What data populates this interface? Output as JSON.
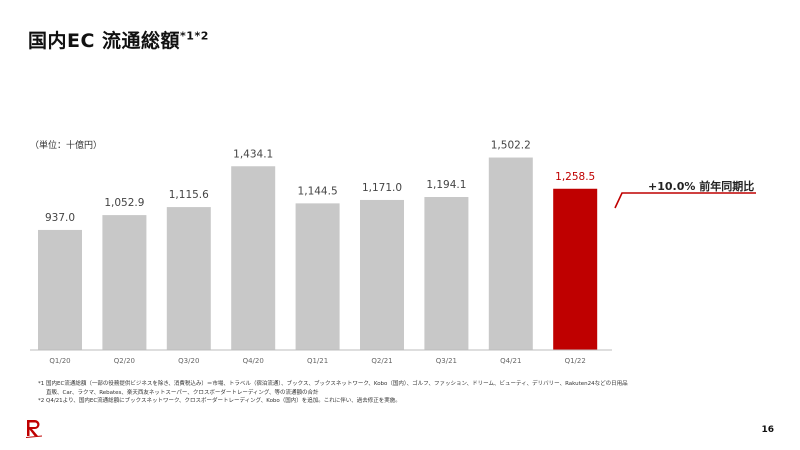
{
  "header": {
    "title": "国内EC 流通総額",
    "title_sup": "*1*2"
  },
  "unit_label": "（単位：十億円）",
  "growth_label": "+10.0% 前年同期比",
  "footnotes": [
    "*1 国内EC流通総額（一部の役務提供ビジネスを除き、消費税込み）＝市場、トラベル（宿泊流通）、ブックス、ブックスネットワーク、Kobo（国内）、ゴルフ、ファッション、ドリーム、ビューティ、デリバリー、Rakuten24などの日用品",
    "直販、Car、ラクマ、Rebates、楽天西友ネットスーパー、クロスボーダートレーディング、等の流通額の合計",
    "*2 Q4/21より、国内EC流通総額にブックスネットワーク、クロスボーダートレーディング、Kobo（国内）を追加。これに伴い、過去修正を実施。"
  ],
  "page_number": "16",
  "colors": {
    "bar": "#c8c8c8",
    "highlight": "#bf0000",
    "axis": "#bdbdbd",
    "label": "#444444",
    "highlight_label": "#bf0000"
  },
  "chart_data": {
    "type": "bar",
    "categories": [
      "Q1/20",
      "Q2/20",
      "Q3/20",
      "Q4/20",
      "Q1/21",
      "Q2/21",
      "Q3/21",
      "Q4/21",
      "Q1/22"
    ],
    "values": [
      937.0,
      1052.9,
      1115.6,
      1434.1,
      1144.5,
      1171.0,
      1194.1,
      1502.2,
      1258.5
    ],
    "value_labels": [
      "937.0",
      "1,052.9",
      "1,115.6",
      "1,434.1",
      "1,144.5",
      "1,171.0",
      "1,194.1",
      "1,502.2",
      "1,258.5"
    ],
    "highlight_index": 8,
    "title": "国内EC 流通総額",
    "xlabel": "",
    "ylabel": "",
    "ylim": [
      0,
      1600
    ],
    "grid": false,
    "legend": "none"
  }
}
